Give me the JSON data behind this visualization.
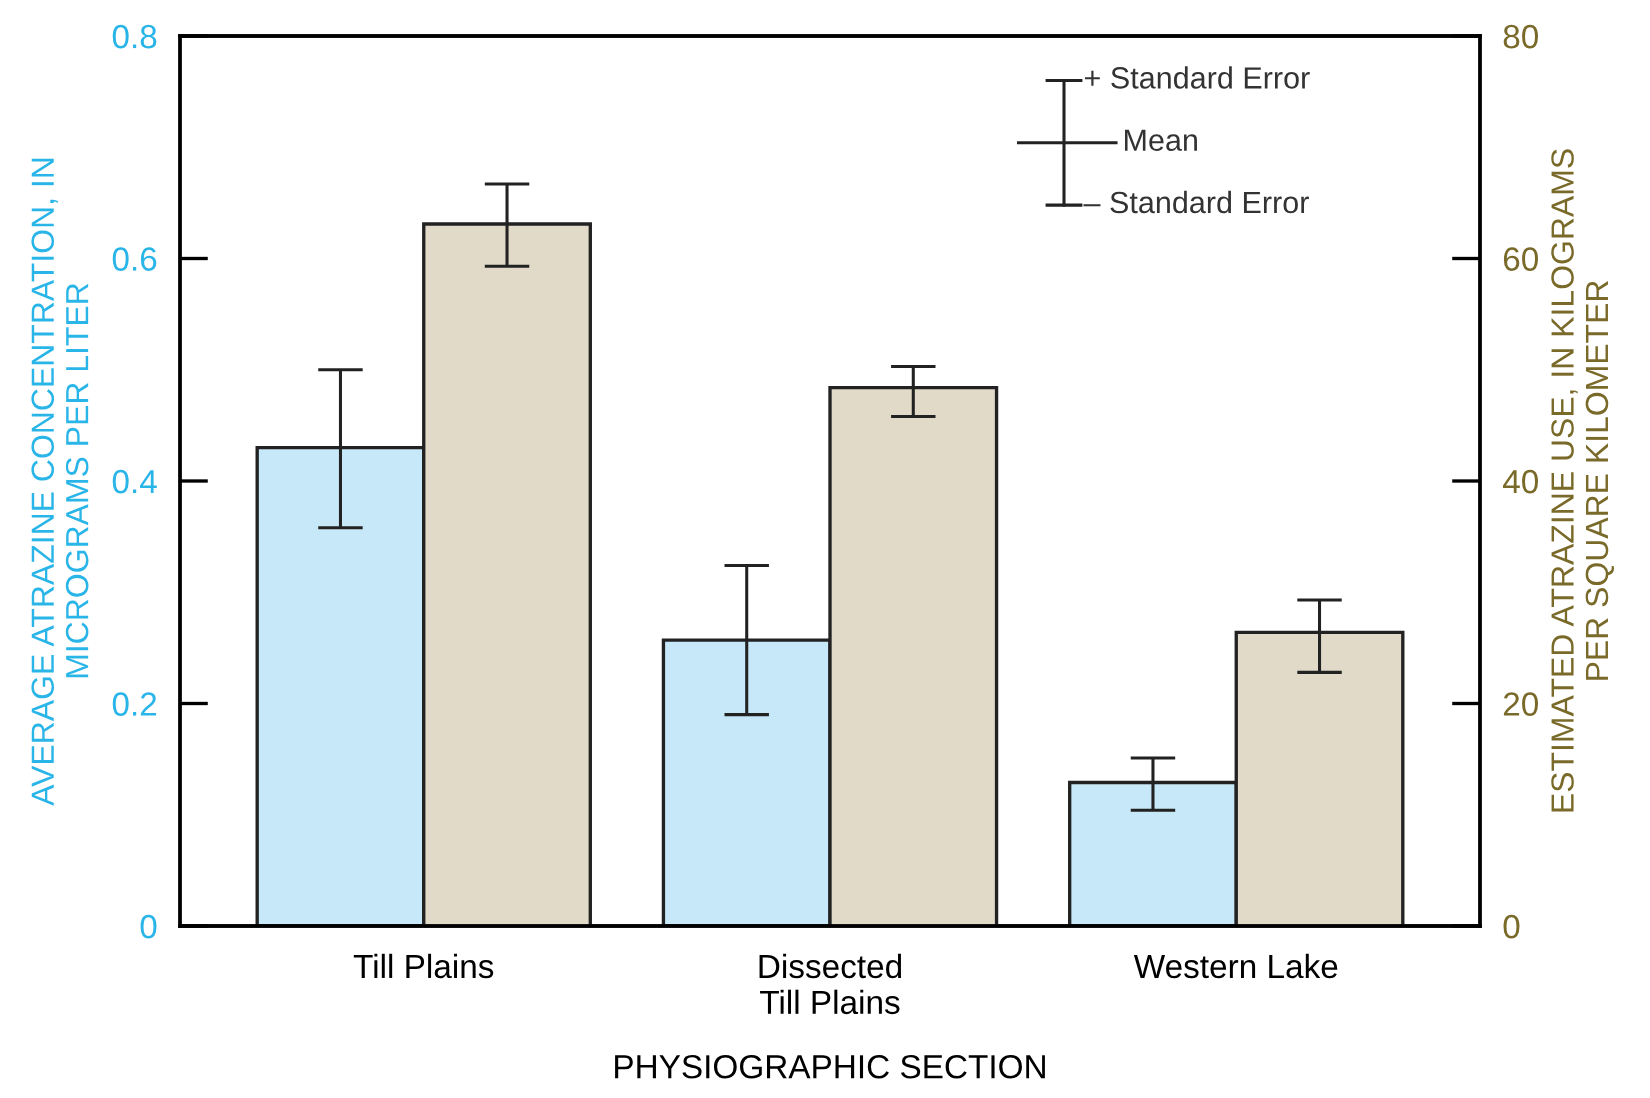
{
  "chart_data": {
    "type": "bar",
    "xlabel": "PHYSIOGRAPHIC SECTION",
    "ylabel": "AVERAGE ATRAZINE CONCENTRATION, IN\nMICROGRAMS PER LITER",
    "y2label": "ESTIMATED ATRAZINE USE, IN KILOGRAMS\nPER SQUARE KILOMETER",
    "categories": [
      "Till Plains",
      "Dissected\nTill Plains",
      "Western Lake"
    ],
    "series": [
      {
        "color": "#c7e8f8",
        "values": [
          0.43,
          0.257,
          0.129
        ],
        "errors": [
          [
            0.358,
            0.5
          ],
          [
            0.19,
            0.324
          ],
          [
            0.104,
            0.151
          ]
        ]
      },
      {
        "color": "#e2dac8",
        "axis": "y2",
        "values": [
          63.1,
          48.4,
          26.4
        ],
        "errors": [
          [
            59.3,
            66.7
          ],
          [
            45.8,
            50.3
          ],
          [
            22.8,
            29.3
          ]
        ]
      }
    ],
    "ylim": [
      0,
      0.8
    ],
    "yticks": [
      0,
      0.2,
      0.4,
      0.6,
      0.8
    ],
    "y2lim": [
      0,
      80
    ],
    "y2ticks": [
      0,
      20,
      40,
      60,
      80
    ],
    "annotations": [
      "+ Standard Error",
      "Mean",
      "– Standard Error"
    ],
    "grid": false,
    "legend": false
  }
}
